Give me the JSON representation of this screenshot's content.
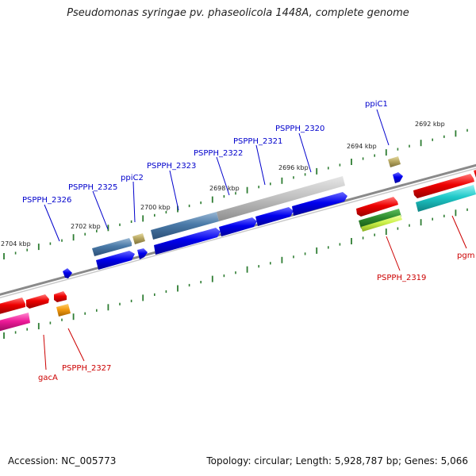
{
  "title": "Pseudomonas syringae pv. phaseolicola 1448A, complete genome",
  "footer": {
    "accession": "Accession: NC_005773",
    "summary": "Topology: circular; Length: 5,928,787 bp; Genes: 5,066"
  },
  "ticks": [
    "2704 kbp",
    "2702 kbp",
    "2700 kbp",
    "2698 kbp",
    "2696 kbp",
    "2694 kbp",
    "2692 kbp"
  ],
  "upper_labels": [
    "PSPPH_2326",
    "PSPPH_2325",
    "ppiC2",
    "PSPPH_2323",
    "PSPPH_2322",
    "PSPPH_2321",
    "PSPPH_2320",
    "ppiC1"
  ],
  "lower_labels": [
    "gacA",
    "PSPPH_2327",
    "PSPPH_2319",
    "pgm"
  ],
  "colors": {
    "upper_label": "#0000cc",
    "lower_label": "#cc0000",
    "forward_gene": "#0000ee",
    "reverse_gene": "#ee0000",
    "backbone": "#7f7f7f",
    "tick": "#2e7d32"
  }
}
